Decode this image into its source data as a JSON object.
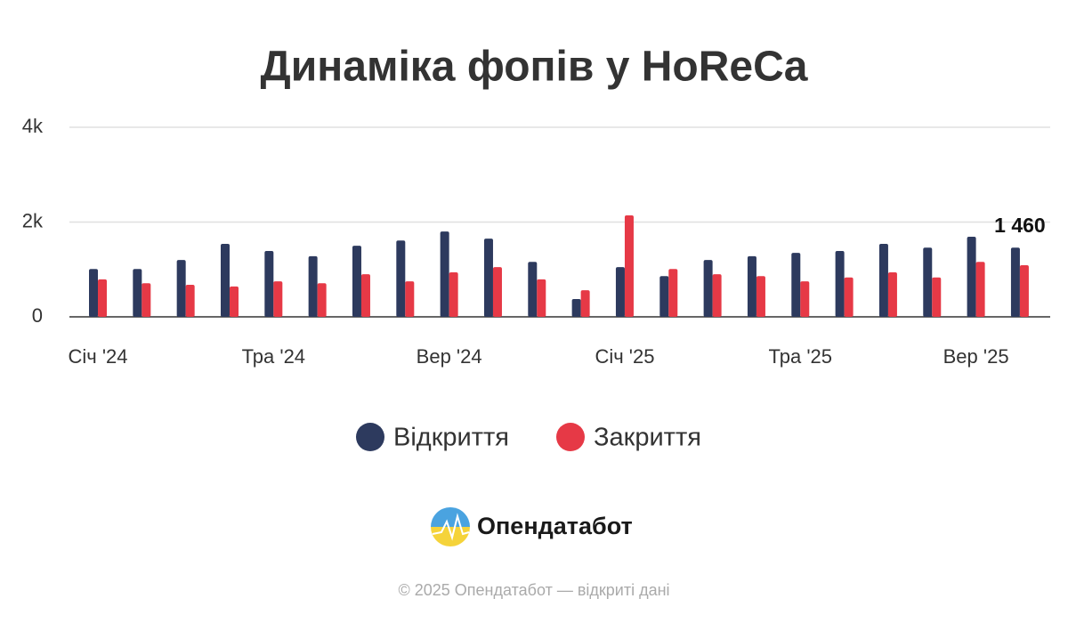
{
  "chart_data": {
    "type": "bar",
    "title": "Динаміка фопів у HoReCa",
    "categories": [
      "Січ '24",
      null,
      null,
      null,
      "Тра '24",
      null,
      null,
      null,
      "Вер '24",
      null,
      null,
      null,
      "Січ '25",
      null,
      null,
      null,
      "Тра '25",
      null,
      null,
      null,
      "Вер '25",
      null
    ],
    "series": [
      {
        "name": "Відкриття",
        "color": "#2d3a5e",
        "values": [
          1010,
          1010,
          1200,
          1540,
          1390,
          1280,
          1500,
          1610,
          1800,
          1650,
          1160,
          375,
          1050,
          860,
          1200,
          1280,
          1350,
          1390,
          1540,
          1460,
          1690,
          1460
        ],
        "value_labels": [
          null,
          null,
          null,
          null,
          null,
          null,
          null,
          null,
          null,
          null,
          null,
          null,
          null,
          null,
          null,
          null,
          null,
          null,
          null,
          null,
          null,
          "1 460"
        ]
      },
      {
        "name": "Закриття",
        "color": "#e63946",
        "values": [
          790,
          710,
          675,
          640,
          750,
          710,
          900,
          750,
          940,
          1050,
          790,
          560,
          2140,
          1010,
          900,
          860,
          750,
          830,
          940,
          830,
          1160,
          1090
        ]
      }
    ],
    "ylim": [
      0,
      4000
    ],
    "yticks": [
      0,
      {
        "value": 2000,
        "label": "2k"
      },
      {
        "value": 4000,
        "label": "4k"
      }
    ],
    "grid": true,
    "legend": "bottom"
  },
  "logo_text": "Опендатабот",
  "footer": "© 2025 Опендатабот — відкриті дані"
}
